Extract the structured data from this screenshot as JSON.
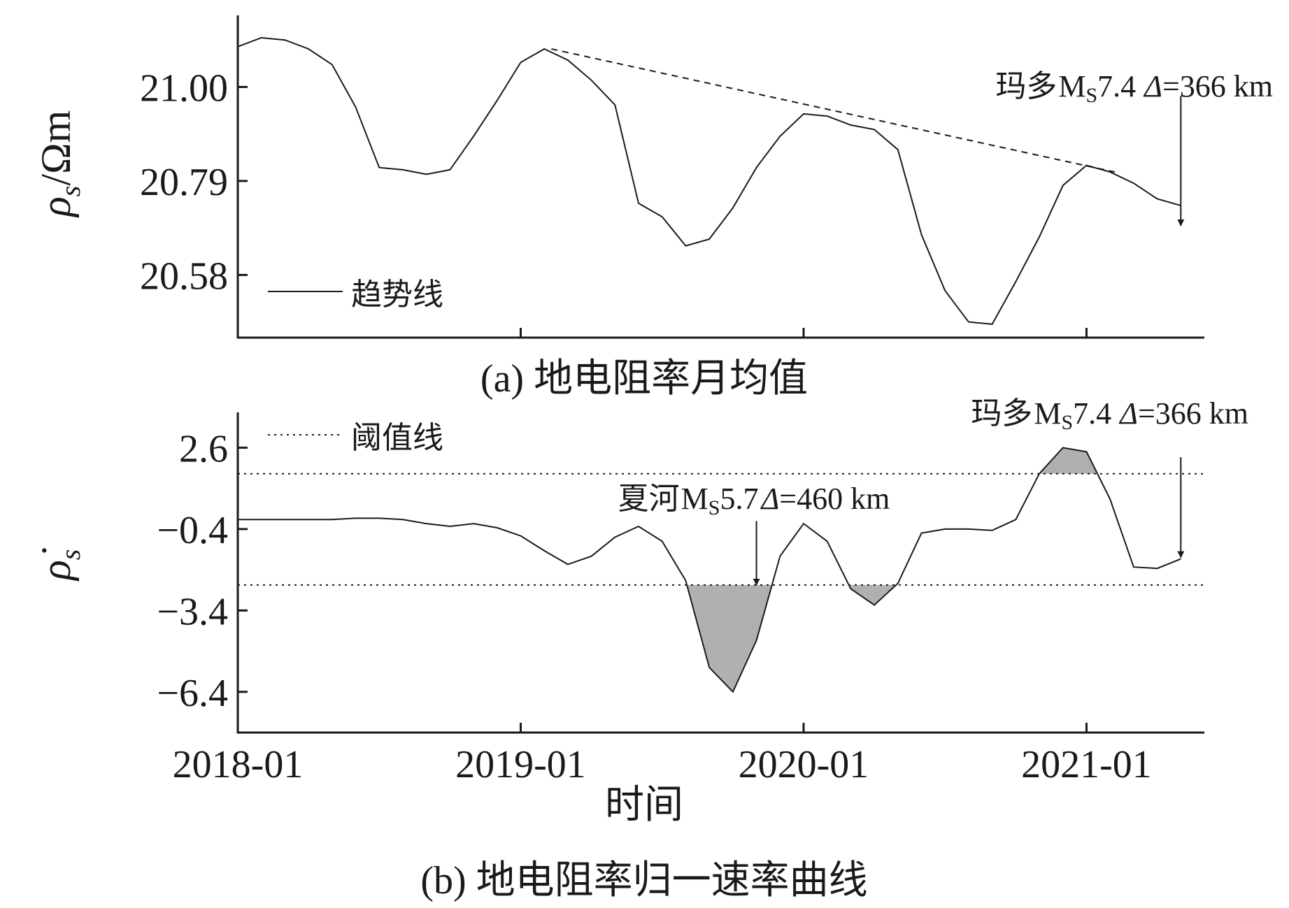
{
  "chart_data": [
    {
      "type": "line",
      "panel": "a",
      "title": "(a) 地电阻率月均值",
      "ylabel": "ρs/Ωm",
      "ylabel_parts": {
        "symbol": "ρ",
        "sub": "s",
        "unit": "/Ωm"
      },
      "y_ticks": [
        20.58,
        20.79,
        21.0
      ],
      "y_tick_labels": [
        "20.58",
        "20.79",
        "21.00"
      ],
      "ylim": [
        20.44,
        21.16
      ],
      "xlim": [
        0,
        41
      ],
      "x_ticks": [
        0,
        12,
        24,
        36
      ],
      "series": [
        {
          "name": "地电阻率月均值",
          "x": [
            0,
            1,
            2,
            3,
            4,
            5,
            6,
            7,
            8,
            9,
            10,
            11,
            12,
            13,
            14,
            15,
            16,
            17,
            18,
            19,
            20,
            21,
            22,
            23,
            24,
            25,
            26,
            27,
            28,
            29,
            30,
            31,
            32,
            33,
            34,
            35,
            36,
            37,
            38,
            39,
            40
          ],
          "values": [
            21.09,
            21.11,
            21.105,
            21.085,
            21.05,
            20.955,
            20.82,
            20.815,
            20.805,
            20.815,
            20.89,
            20.97,
            21.055,
            21.085,
            21.06,
            21.015,
            20.96,
            20.74,
            20.71,
            20.645,
            20.66,
            20.73,
            20.82,
            20.89,
            20.94,
            20.935,
            20.915,
            20.905,
            20.86,
            20.67,
            20.545,
            20.475,
            20.47,
            20.565,
            20.665,
            20.78,
            20.825,
            20.81,
            20.785,
            20.75,
            20.735
          ]
        }
      ],
      "trend": {
        "name": "趋势线",
        "x": [
          13.3,
          37.2
        ],
        "values": [
          21.085,
          20.81
        ]
      },
      "legend": {
        "label": "趋势线",
        "position": "bottom-left"
      },
      "annotations": [
        {
          "event": "玛多",
          "mag_prefix": "M",
          "mag_sub": "S",
          "mag_value": "7.4",
          "delta_symbol": "Δ",
          "delta_value": "=366 km",
          "x": 40,
          "arrow_from": 20.98,
          "arrow_to": 20.69
        }
      ]
    },
    {
      "type": "line",
      "panel": "b",
      "title": "(b) 地电阻率归一速率曲线",
      "ylabel": "ρ̇s",
      "ylabel_parts": {
        "symbol": "ρ̇",
        "sub": "s"
      },
      "xlabel": "时间",
      "y_ticks": [
        -6.4,
        -3.4,
        -0.4,
        2.6
      ],
      "y_tick_labels": [
        "−6.4",
        "−3.4",
        "−0.4",
        "2.6"
      ],
      "ylim": [
        -7.9,
        3.9
      ],
      "xlim": [
        0,
        41
      ],
      "x_ticks": [
        0,
        12,
        24,
        36
      ],
      "x_tick_labels": [
        "2018-01",
        "2019-01",
        "2020-01",
        "2021-01"
      ],
      "thresholds": {
        "label": "阈值线",
        "upper": 1.64,
        "lower": -2.46
      },
      "legend": {
        "label": "阈值线",
        "position": "top-left"
      },
      "series": [
        {
          "name": "地电阻率归一速率",
          "x": [
            0,
            1,
            2,
            3,
            4,
            5,
            6,
            7,
            8,
            9,
            10,
            11,
            12,
            13,
            14,
            15,
            16,
            17,
            18,
            19,
            20,
            21,
            22,
            23,
            24,
            25,
            26,
            27,
            28,
            29,
            30,
            31,
            32,
            33,
            34,
            35,
            36,
            37,
            38,
            39,
            40
          ],
          "values": [
            -0.05,
            -0.05,
            -0.05,
            -0.05,
            -0.05,
            0.0,
            0.0,
            -0.05,
            -0.2,
            -0.3,
            -0.2,
            -0.35,
            -0.65,
            -1.2,
            -1.7,
            -1.4,
            -0.7,
            -0.3,
            -0.85,
            -2.3,
            -5.5,
            -6.4,
            -4.5,
            -1.4,
            -0.2,
            -0.85,
            -2.6,
            -3.2,
            -2.4,
            -0.55,
            -0.4,
            -0.4,
            -0.45,
            -0.05,
            1.64,
            2.6,
            2.45,
            0.7,
            -1.8,
            -1.85,
            -1.5
          ]
        }
      ],
      "annotations": [
        {
          "event": "夏河",
          "mag_prefix": "M",
          "mag_sub": "S",
          "mag_value": "5.7",
          "delta_symbol": "Δ",
          "delta_value": "=460 km",
          "x": 22,
          "arrow_from": -0.1,
          "arrow_to": -2.46
        },
        {
          "event": "玛多",
          "mag_prefix": "M",
          "mag_sub": "S",
          "mag_value": "7.4",
          "delta_symbol": "Δ",
          "delta_value": "=366 km",
          "x": 40,
          "arrow_from": 2.25,
          "arrow_to": -1.45
        }
      ]
    }
  ]
}
